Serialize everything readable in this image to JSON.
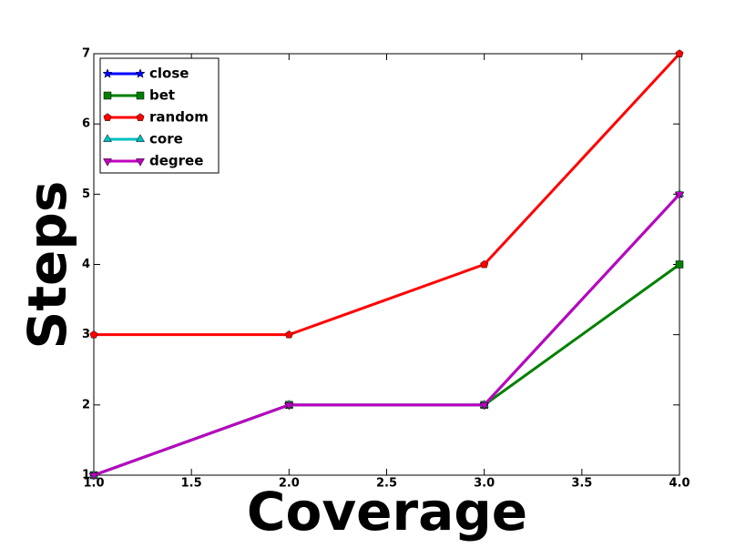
{
  "chart_data": {
    "type": "line",
    "xlabel": "Coverage",
    "ylabel": "Steps",
    "x": [
      1,
      2,
      3,
      4
    ],
    "series": [
      {
        "name": "close",
        "color": "#0000ff",
        "marker": "star",
        "values": [
          1,
          2,
          2,
          5
        ]
      },
      {
        "name": "bet",
        "color": "#008000",
        "marker": "square",
        "values": [
          1,
          2,
          2,
          4
        ]
      },
      {
        "name": "random",
        "color": "#ff0000",
        "marker": "pentagon",
        "values": [
          3,
          3,
          4,
          7
        ]
      },
      {
        "name": "core",
        "color": "#00bfbf",
        "marker": "triangle-up",
        "values": [
          1,
          2,
          2,
          5
        ]
      },
      {
        "name": "degree",
        "color": "#bf00bf",
        "marker": "triangle-down",
        "values": [
          1,
          2,
          2,
          5
        ]
      }
    ],
    "xlim": [
      1,
      4
    ],
    "xticks": [
      {
        "value": 1,
        "label": "1.0"
      },
      1.5,
      {
        "value": 2,
        "label": "2.0"
      },
      2.5,
      {
        "value": 3,
        "label": "3.0"
      },
      3.5,
      {
        "value": 4,
        "label": "4.0"
      }
    ],
    "ylim": [
      1,
      7
    ],
    "yticks": [
      1,
      2,
      3,
      4,
      5,
      6,
      7
    ],
    "grid": false,
    "legend": "upper-left"
  }
}
